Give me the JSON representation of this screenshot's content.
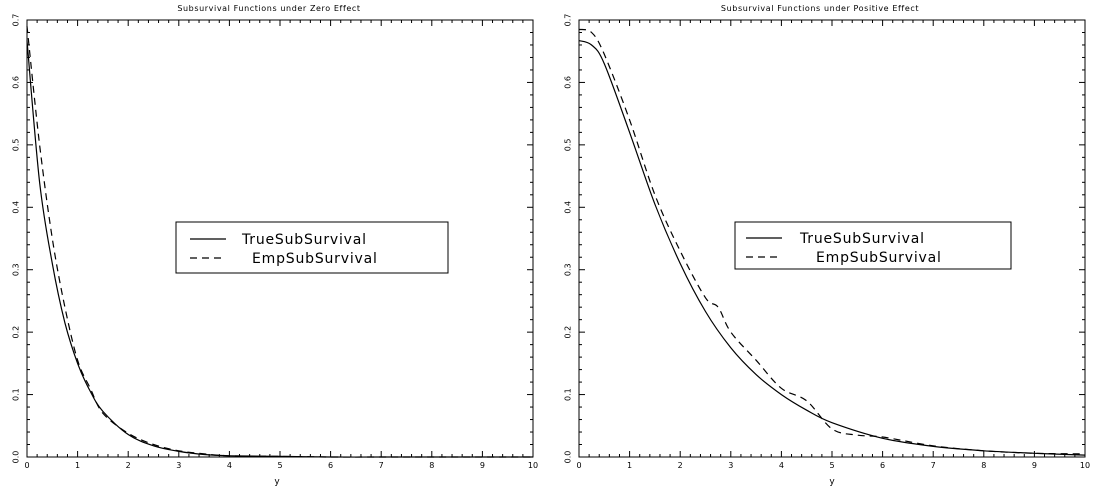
{
  "chart_data": [
    {
      "type": "line",
      "title": "Subsurvival Functions under Zero Effect",
      "xlabel": "y",
      "ylabel": "",
      "xlim": [
        0,
        10
      ],
      "ylim": [
        0,
        0.7
      ],
      "xticks": [
        "0",
        "1",
        "2",
        "3",
        "4",
        "5",
        "6",
        "7",
        "8",
        "9",
        "10"
      ],
      "yticks": [
        "0.0",
        "0.1",
        "0.2",
        "0.3",
        "0.4",
        "0.5",
        "0.6",
        "0.7"
      ],
      "grid": false,
      "legend": "center-right",
      "series": [
        {
          "name": "TrueSubSurvival",
          "style": "solid",
          "x": [
            0,
            0.25,
            0.5,
            0.75,
            1,
            1.25,
            1.5,
            2,
            2.5,
            3,
            3.5,
            4,
            5,
            6,
            7,
            8,
            9,
            10
          ],
          "y": [
            0.667,
            0.44,
            0.31,
            0.215,
            0.15,
            0.105,
            0.073,
            0.036,
            0.018,
            0.009,
            0.004,
            0.002,
            0.001,
            0,
            0,
            0,
            0,
            0
          ]
        },
        {
          "name": "EmpSubSurvival",
          "style": "dashed",
          "x": [
            0,
            0.25,
            0.5,
            0.75,
            1,
            1.25,
            1.5,
            2,
            2.5,
            3,
            3.5,
            4,
            5,
            6,
            7,
            8,
            9,
            10
          ],
          "y": [
            0.69,
            0.5,
            0.35,
            0.24,
            0.155,
            0.11,
            0.07,
            0.038,
            0.02,
            0.01,
            0.005,
            0.002,
            0.001,
            0,
            0,
            0,
            0,
            0
          ]
        }
      ]
    },
    {
      "type": "line",
      "title": "Subsurvival Functions under Positive Effect",
      "xlabel": "y",
      "ylabel": "",
      "xlim": [
        0,
        10
      ],
      "ylim": [
        0,
        0.7
      ],
      "xticks": [
        "0",
        "1",
        "2",
        "3",
        "4",
        "5",
        "6",
        "7",
        "8",
        "9",
        "10"
      ],
      "yticks": [
        "0.0",
        "0.1",
        "0.2",
        "0.3",
        "0.4",
        "0.5",
        "0.6",
        "0.7"
      ],
      "grid": false,
      "legend": "center-right",
      "series": [
        {
          "name": "TrueSubSurvival",
          "style": "solid",
          "x": [
            0,
            0.25,
            0.5,
            1,
            1.5,
            2,
            2.5,
            3,
            3.5,
            4,
            4.5,
            5,
            6,
            7,
            8,
            9,
            10
          ],
          "y": [
            0.667,
            0.66,
            0.63,
            0.52,
            0.405,
            0.31,
            0.233,
            0.175,
            0.132,
            0.1,
            0.075,
            0.055,
            0.03,
            0.017,
            0.01,
            0.006,
            0.003
          ]
        },
        {
          "name": "EmpSubSurvival",
          "style": "dashed",
          "x": [
            0,
            0.25,
            0.5,
            1,
            1.5,
            2,
            2.5,
            2.75,
            3,
            3.5,
            4,
            4.5,
            5,
            5.5,
            6,
            7,
            8,
            9,
            10
          ],
          "y": [
            0.685,
            0.68,
            0.645,
            0.54,
            0.42,
            0.33,
            0.255,
            0.24,
            0.2,
            0.155,
            0.11,
            0.09,
            0.045,
            0.035,
            0.032,
            0.018,
            0.01,
            0.006,
            0.005
          ]
        }
      ]
    }
  ]
}
